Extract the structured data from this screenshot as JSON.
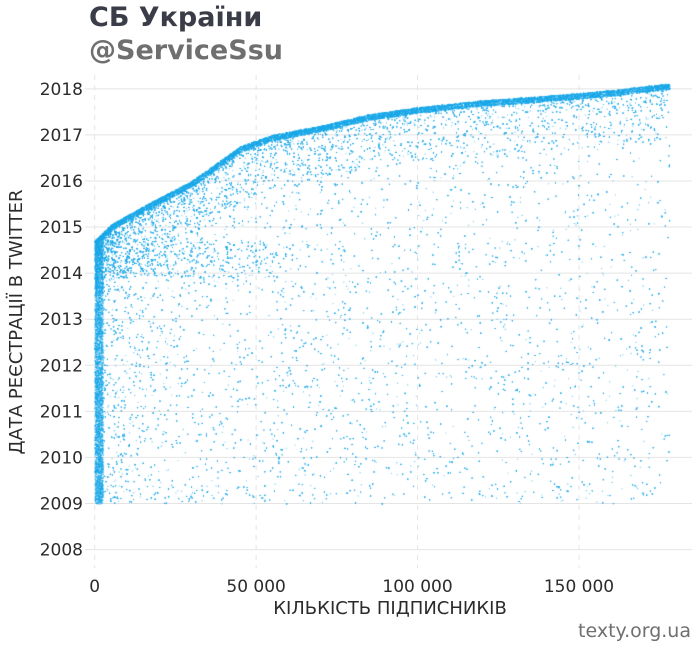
{
  "header": {
    "title": "СБ України",
    "subtitle": "@ServiceSsu"
  },
  "footer": {
    "credit": "texty.org.ua"
  },
  "colors": {
    "points": "#1aa7e8",
    "grid": "#e4e4e4",
    "title": "#3a3d47",
    "subtitle": "#6f6f6f"
  },
  "chart_data": {
    "type": "scatter",
    "xlabel": "КІЛЬКІСТЬ ПІДПИСНИКІВ",
    "ylabel": "ДАТА РЕЄСТРАЦІЇ В TWITTER",
    "xlim": [
      -3000,
      185000
    ],
    "ylim": [
      2007.6,
      2018.3
    ],
    "x_ticks": [
      0,
      50000,
      100000,
      150000
    ],
    "x_tick_labels": [
      "0",
      "50 000",
      "100 000",
      "150 000"
    ],
    "y_ticks": [
      2008,
      2009,
      2010,
      2011,
      2012,
      2013,
      2014,
      2015,
      2016,
      2017,
      2018
    ],
    "y_tick_labels": [
      "2008",
      "2009",
      "2010",
      "2011",
      "2012",
      "2013",
      "2014",
      "2015",
      "2016",
      "2017",
      "2018"
    ],
    "grid": true,
    "approx_total_points": 175000,
    "upper_envelope": {
      "x": [
        0,
        5000,
        15000,
        30000,
        45000,
        55000,
        70000,
        85000,
        100000,
        120000,
        140000,
        160000,
        178000
      ],
      "y": [
        2014.7,
        2015.05,
        2015.45,
        2016.0,
        2016.75,
        2017.0,
        2017.2,
        2017.45,
        2017.6,
        2017.75,
        2017.85,
        2017.97,
        2018.12
      ]
    }
  }
}
